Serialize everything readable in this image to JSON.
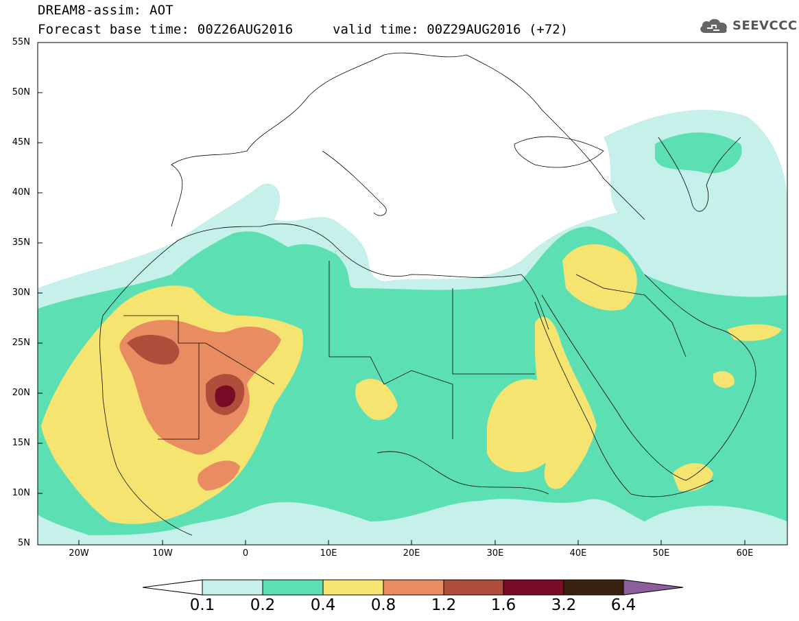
{
  "header": {
    "title_line1": "DREAM8-assim: AOT",
    "title_line2": "Forecast base time: 00Z26AUG2016",
    "valid_time": "valid time: 00Z29AUG2016 (+72)",
    "logo_text": "SEEVCCC",
    "logo_icon": "cloud-icon"
  },
  "map": {
    "latitude_labels": [
      "55N",
      "50N",
      "45N",
      "40N",
      "35N",
      "30N",
      "25N",
      "20N",
      "15N",
      "10N",
      "5N"
    ],
    "longitude_labels": [
      "20W",
      "10W",
      "0",
      "10E",
      "20E",
      "30E",
      "40E",
      "50E",
      "60E"
    ],
    "extent": {
      "lon": [
        -25,
        65
      ],
      "lat": [
        5,
        55
      ]
    }
  },
  "colorbar": {
    "labels": [
      "0.1",
      "0.2",
      "0.4",
      "0.8",
      "1.2",
      "1.6",
      "3.2",
      "6.4"
    ],
    "colors": [
      "#c6f1ea",
      "#5cdfb2",
      "#f5e470",
      "#e98c62",
      "#b04e3c",
      "#7a0b25",
      "#3a2211",
      "#8c5e9b"
    ],
    "under_color": "#ffffff",
    "over_color": "#8c5e9b"
  }
}
